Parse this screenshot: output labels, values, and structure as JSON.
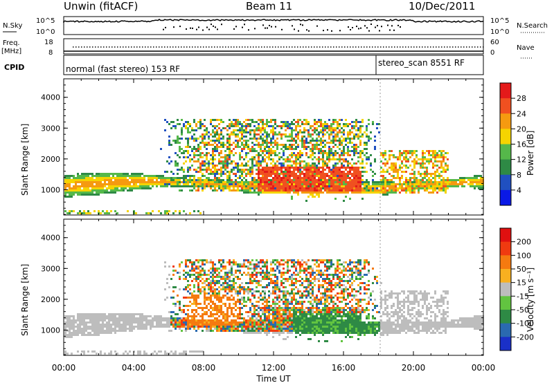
{
  "header": {
    "station": "Unwin (fitACF)",
    "beam": "Beam 11",
    "date": "10/Dec/2011"
  },
  "top_panels": {
    "nsky_label": "N.Sky",
    "nsearch_label": "N.Search",
    "nsky_ticks": [
      "10^5",
      "10^0"
    ],
    "freq_label_1": "Freq.",
    "freq_label_2": "[MHz]",
    "freq_ticks": [
      "18",
      "8"
    ],
    "nave_label": "Nave",
    "nave_ticks": [
      "60",
      "0"
    ],
    "cpid_label": "CPID",
    "cpid_segments": [
      {
        "text": "normal (fast stereo) 153 RF",
        "start_hour": 0
      },
      {
        "text": "stereo_scan 8551 RF",
        "start_hour": 18
      }
    ]
  },
  "chart_data": [
    {
      "type": "heatmap",
      "title": "",
      "xlabel": "Time UT",
      "ylabel": "Slant Range [km]",
      "xlim": [
        0,
        24
      ],
      "ylim": [
        180,
        4600
      ],
      "x_ticks": [
        "00:00",
        "04:00",
        "08:00",
        "12:00",
        "16:00",
        "20:00",
        "00:00"
      ],
      "y_ticks": [
        1000,
        2000,
        3000,
        4000
      ],
      "colorbar": {
        "label": "Power [dB]",
        "ticks": [
          "4",
          "8",
          "12",
          "16",
          "20",
          "24",
          "28"
        ],
        "colors": [
          "#0a19e6",
          "#2050c0",
          "#2e8a45",
          "#55b84a",
          "#f5d400",
          "#f59a10",
          "#f05020",
          "#e41a1a"
        ]
      }
    },
    {
      "type": "heatmap",
      "title": "",
      "xlabel": "Time UT",
      "ylabel": "Slant Range [km]",
      "xlim": [
        0,
        24
      ],
      "ylim": [
        180,
        4600
      ],
      "x_ticks": [
        "00:00",
        "04:00",
        "08:00",
        "12:00",
        "16:00",
        "20:00",
        "00:00"
      ],
      "y_ticks": [
        1000,
        2000,
        3000,
        4000
      ],
      "colorbar": {
        "label": "Velocity [m s⁻¹]",
        "ticks": [
          "200",
          "100",
          "50",
          "15",
          "-15",
          "-50",
          "-100",
          "-200"
        ],
        "colors": [
          "#1a30c8",
          "#2a6ab0",
          "#2e8a45",
          "#62c440",
          "#bdbdbd",
          "#f8b020",
          "#f57a10",
          "#f03a10",
          "#e01010"
        ]
      }
    }
  ],
  "axis": {
    "x_title": "Time UT"
  }
}
